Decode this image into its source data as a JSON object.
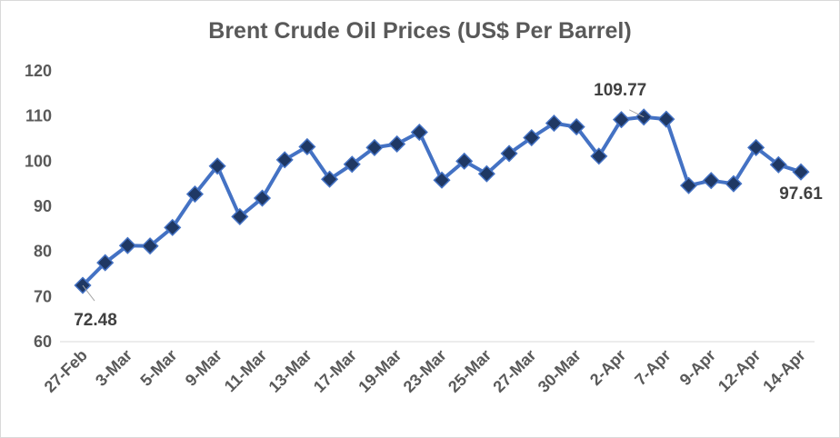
{
  "chart_data": {
    "type": "line",
    "title": "Brent Crude Oil Prices (US$ Per Barrel)",
    "xlabel": "",
    "ylabel": "",
    "ylim": [
      60,
      120
    ],
    "yticks": [
      60,
      70,
      80,
      90,
      100,
      110,
      120
    ],
    "grid": false,
    "legend": "none",
    "colors": {
      "line": "#4472c4",
      "marker": "#1f3864",
      "text": "#595959"
    },
    "x_tick_labels": [
      "27-Feb",
      "3-Mar",
      "5-Mar",
      "9-Mar",
      "11-Mar",
      "13-Mar",
      "17-Mar",
      "19-Mar",
      "23-Mar",
      "25-Mar",
      "27-Mar",
      "30-Mar",
      "2-Apr",
      "7-Apr",
      "9-Apr",
      "12-Apr",
      "14-Apr"
    ],
    "series": [
      {
        "values": [
          72.48,
          77.5,
          81.3,
          81.2,
          85.3,
          92.7,
          98.9,
          87.7,
          91.8,
          100.3,
          103.2,
          96.0,
          99.3,
          103.0,
          103.8,
          106.4,
          95.8,
          100.0,
          97.2,
          101.7,
          105.2,
          108.4,
          107.6,
          101.1,
          109.2,
          109.77,
          109.3,
          94.6,
          95.7,
          95.0,
          103.0,
          99.2,
          97.61
        ]
      }
    ],
    "data_labels": [
      {
        "index": 0,
        "text": "72.48"
      },
      {
        "index": 25,
        "text": "109.77"
      },
      {
        "index": 32,
        "text": "97.61"
      }
    ]
  }
}
